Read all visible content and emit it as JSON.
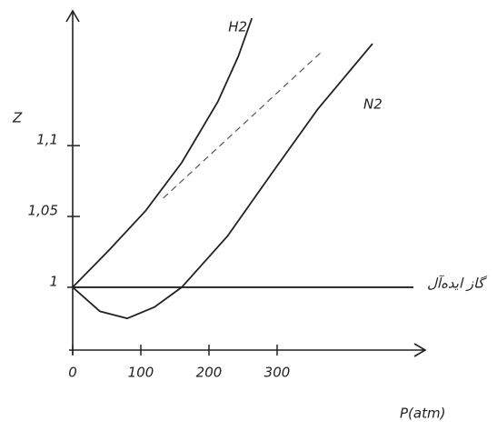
{
  "chart_data": {
    "type": "line",
    "y_label": "Z",
    "x_label": "P(atm)",
    "xlim": [
      0,
      510
    ],
    "ylim": [
      0.955,
      1.19
    ],
    "xticks": [
      0,
      100,
      200,
      300
    ],
    "yticks": [
      1,
      {
        "value": 1.05,
        "label": "1,05"
      },
      {
        "value": 1.1,
        "label": "1,1"
      }
    ],
    "series": [
      {
        "name": "H2",
        "color": "#222222",
        "x": [
          0,
          53,
          107,
          160,
          213,
          243,
          263
        ],
        "values": [
          1,
          1.026,
          1.054,
          1.088,
          1.131,
          1.163,
          1.19
        ]
      },
      {
        "name": "N2",
        "color": "#222222",
        "x": [
          0,
          40,
          80,
          120,
          160,
          227,
          293,
          360,
          440
        ],
        "values": [
          1,
          0.983,
          0.978,
          0.986,
          1,
          1.036,
          1.081,
          1.126,
          1.172
        ]
      },
      {
        "name": "گاز ایده‌آل",
        "color": "#222222",
        "x": [
          0,
          500
        ],
        "values": [
          1,
          1
        ]
      }
    ],
    "tangent": {
      "color": "#555555",
      "x": [
        133,
        367
      ],
      "values": [
        1.063,
        1.167
      ]
    }
  }
}
